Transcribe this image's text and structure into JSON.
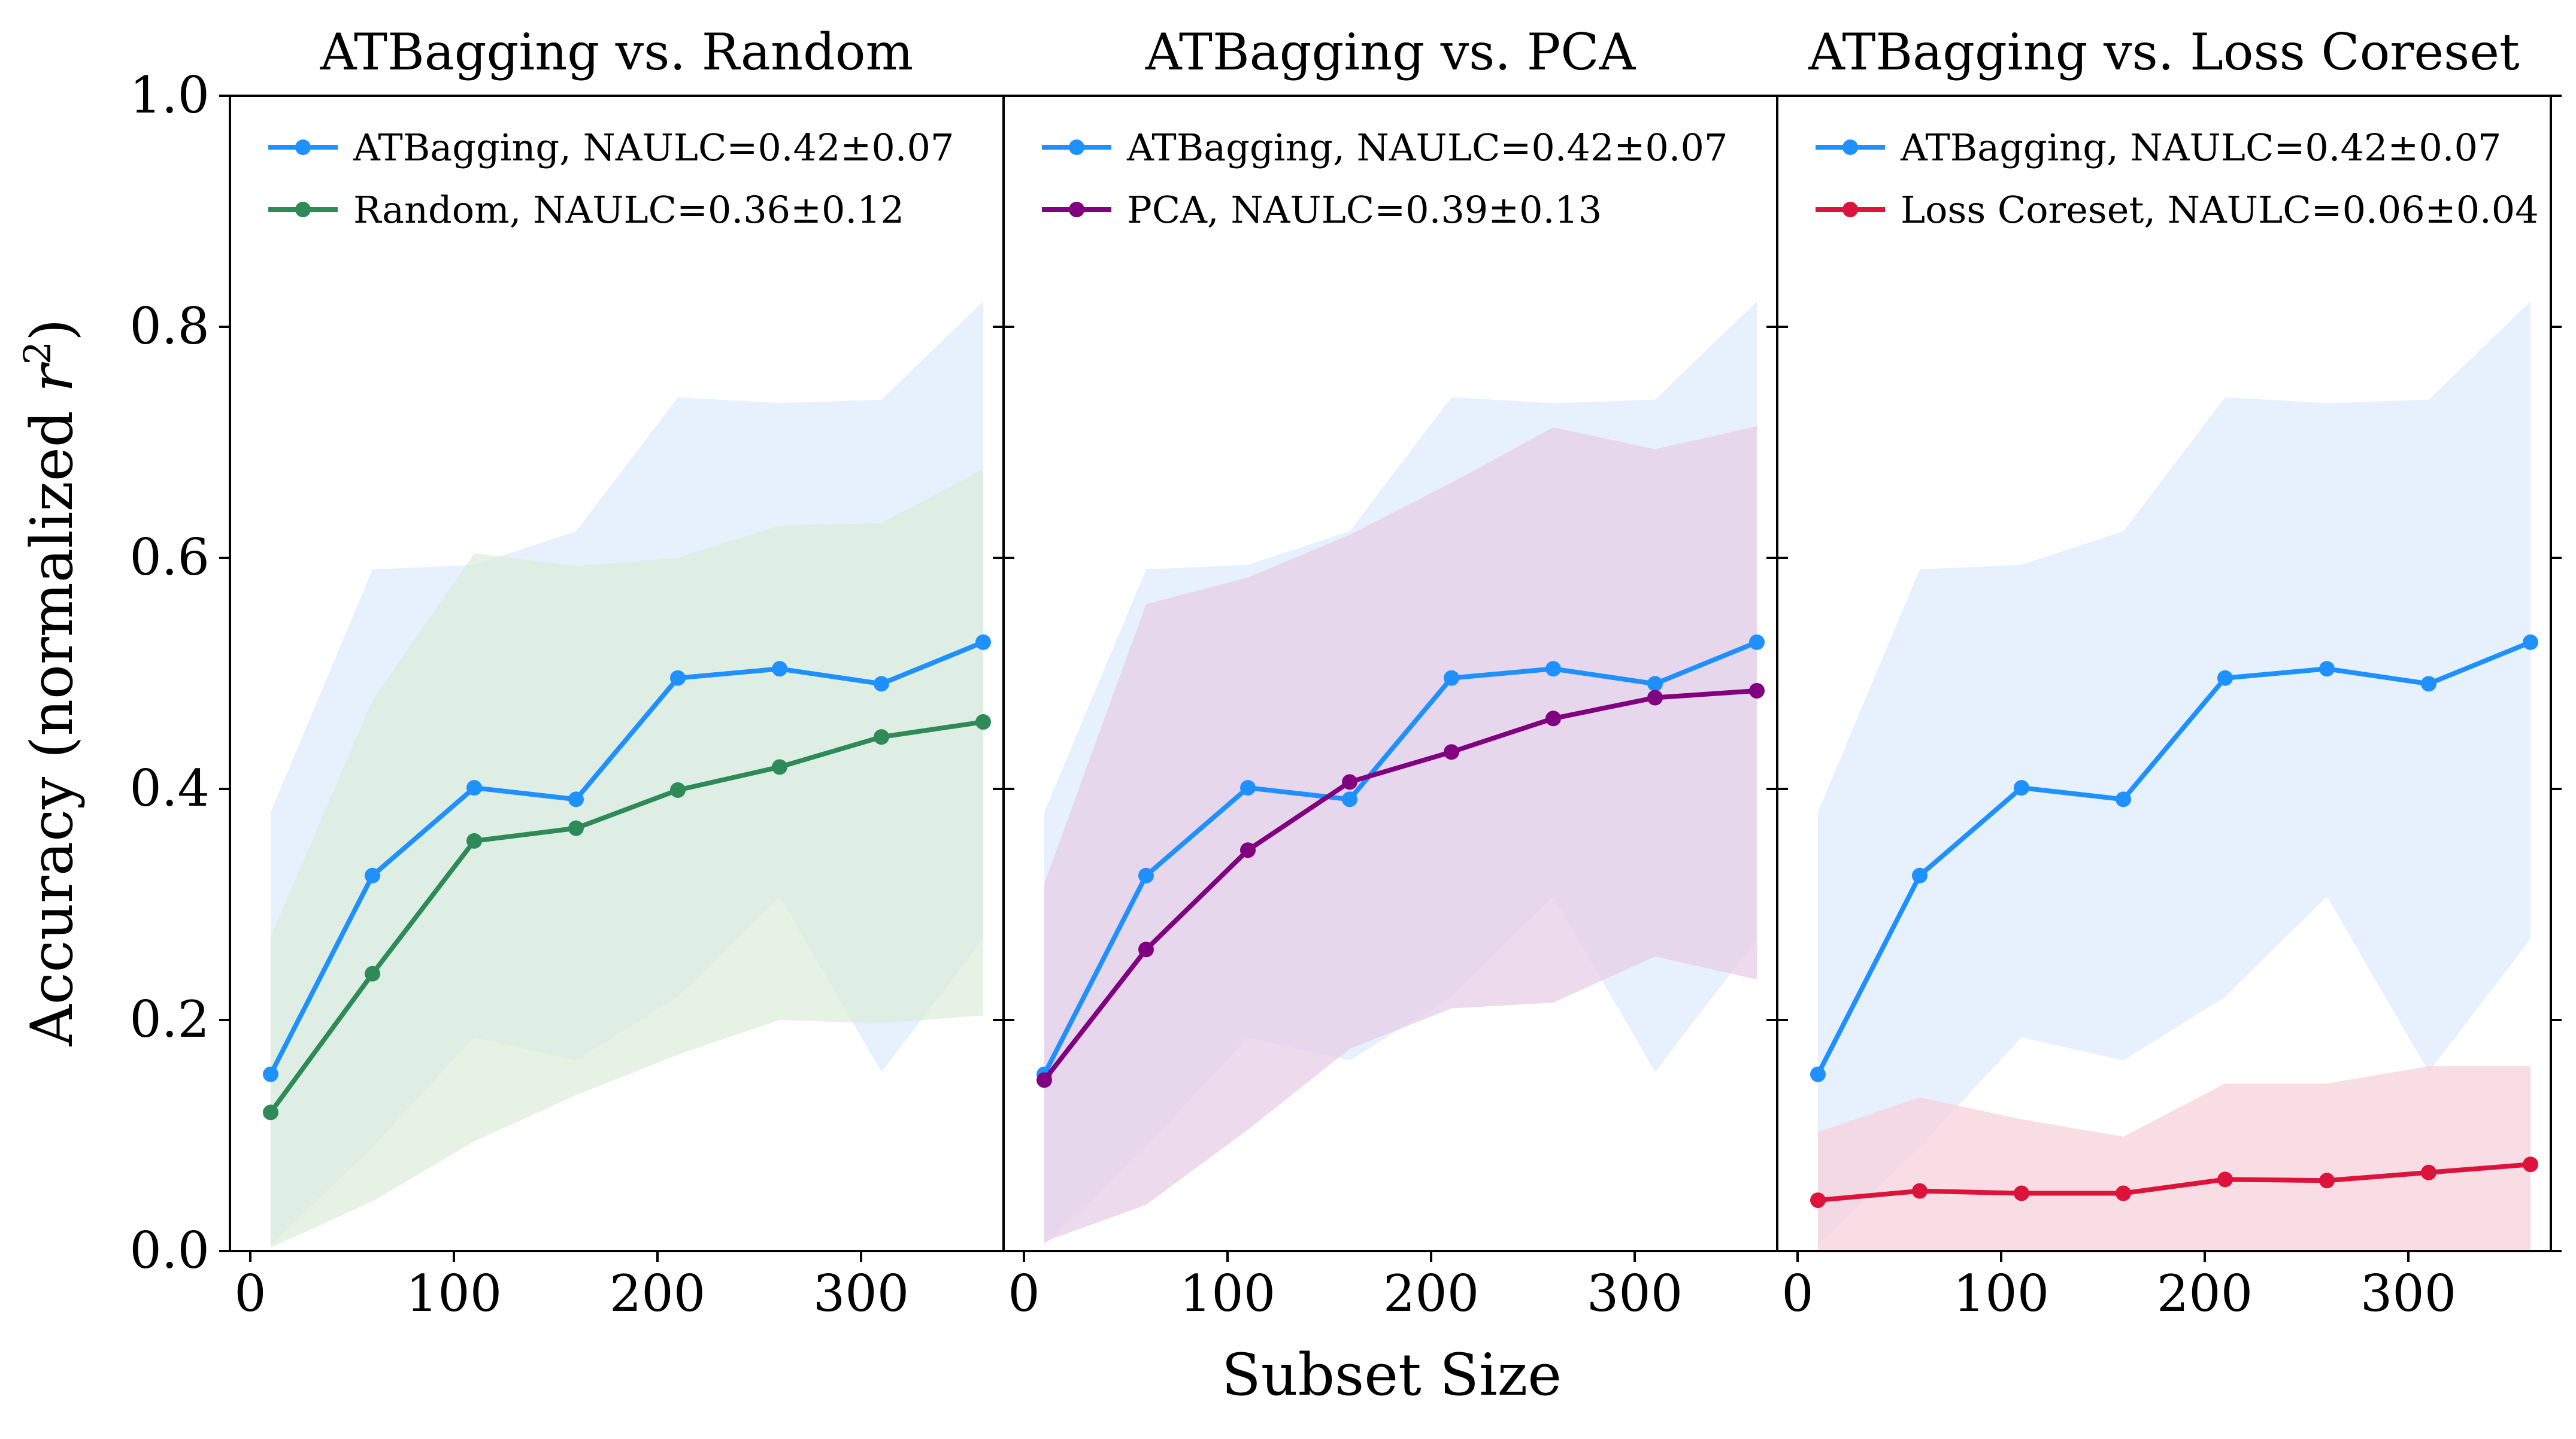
{
  "shared": {
    "xlabel": "Subset Size",
    "ylabel": "Accuracy (normalized r²)",
    "ylabel_main": "Accuracy (normalized ",
    "ylabel_var": "r",
    "ylabel_sup": "2",
    "ylabel_close": ")",
    "xlim": [
      -10,
      370
    ],
    "ylim": [
      0.0,
      1.0
    ],
    "xticks": [
      0,
      100,
      200,
      300
    ],
    "yticks": [
      0.0,
      0.2,
      0.4,
      0.6,
      0.8,
      1.0
    ],
    "ytick_labels": [
      "0.0",
      "0.2",
      "0.4",
      "0.6",
      "0.8",
      "1.0"
    ],
    "legend_position": "upper-left"
  },
  "chart_data": [
    {
      "type": "line",
      "title": "ATBagging vs. Random",
      "xlabel": "Subset Size",
      "ylabel": "Accuracy (normalized r²)",
      "xlim": [
        -10,
        370
      ],
      "ylim": [
        0.0,
        1.0
      ],
      "x": [
        10,
        60,
        110,
        160,
        210,
        260,
        310,
        360
      ],
      "series": [
        {
          "name": "ATBagging, NAULC=0.42±0.07",
          "color": "#1E90FF",
          "band_color": "#D6E8FB",
          "values": [
            0.153,
            0.325,
            0.401,
            0.391,
            0.496,
            0.504,
            0.491,
            0.527
          ],
          "lower": [
            0.005,
            0.09,
            0.185,
            0.165,
            0.22,
            0.307,
            0.155,
            0.27
          ],
          "upper": [
            0.38,
            0.59,
            0.594,
            0.623,
            0.739,
            0.734,
            0.737,
            0.822
          ]
        },
        {
          "name": "Random, NAULC=0.36±0.12",
          "color": "#2E8B57",
          "band_color": "#DCECD8",
          "values": [
            0.12,
            0.24,
            0.355,
            0.366,
            0.399,
            0.419,
            0.445,
            0.458
          ],
          "lower": [
            0.003,
            0.043,
            0.095,
            0.135,
            0.17,
            0.2,
            0.197,
            0.204
          ],
          "upper": [
            0.272,
            0.477,
            0.604,
            0.593,
            0.6,
            0.628,
            0.63,
            0.677
          ]
        }
      ]
    },
    {
      "type": "line",
      "title": "ATBagging vs. PCA",
      "xlabel": "Subset Size",
      "ylabel": "Accuracy (normalized r²)",
      "xlim": [
        -10,
        370
      ],
      "ylim": [
        0.0,
        1.0
      ],
      "x": [
        10,
        60,
        110,
        160,
        210,
        260,
        310,
        360
      ],
      "series": [
        {
          "name": "ATBagging, NAULC=0.42±0.07",
          "color": "#1E90FF",
          "band_color": "#D6E8FB",
          "values": [
            0.153,
            0.325,
            0.401,
            0.391,
            0.496,
            0.504,
            0.491,
            0.527
          ],
          "lower": [
            0.005,
            0.09,
            0.185,
            0.165,
            0.22,
            0.307,
            0.155,
            0.27
          ],
          "upper": [
            0.38,
            0.59,
            0.594,
            0.623,
            0.739,
            0.734,
            0.737,
            0.822
          ]
        },
        {
          "name": "PCA, NAULC=0.39±0.13",
          "color": "#800080",
          "band_color": "#E6CCE6",
          "values": [
            0.148,
            0.261,
            0.347,
            0.406,
            0.432,
            0.461,
            0.479,
            0.485
          ],
          "lower": [
            0.008,
            0.04,
            0.105,
            0.175,
            0.21,
            0.215,
            0.255,
            0.235
          ],
          "upper": [
            0.318,
            0.56,
            0.583,
            0.62,
            0.665,
            0.713,
            0.694,
            0.714
          ]
        }
      ]
    },
    {
      "type": "line",
      "title": "ATBagging vs. Loss Coreset",
      "xlabel": "Subset Size",
      "ylabel": "Accuracy (normalized r²)",
      "xlim": [
        -10,
        370
      ],
      "ylim": [
        0.0,
        1.0
      ],
      "x": [
        10,
        60,
        110,
        160,
        210,
        260,
        310,
        360
      ],
      "series": [
        {
          "name": "ATBagging, NAULC=0.42±0.07",
          "color": "#1E90FF",
          "band_color": "#D6E8FB",
          "values": [
            0.153,
            0.325,
            0.401,
            0.391,
            0.496,
            0.504,
            0.491,
            0.527
          ],
          "lower": [
            0.005,
            0.09,
            0.185,
            0.165,
            0.22,
            0.307,
            0.155,
            0.27
          ],
          "upper": [
            0.38,
            0.59,
            0.594,
            0.623,
            0.739,
            0.734,
            0.737,
            0.822
          ]
        },
        {
          "name": "Loss Coreset, NAULC=0.06±0.04",
          "color": "#DC143C",
          "band_color": "#F7CFD8",
          "values": [
            0.044,
            0.052,
            0.05,
            0.05,
            0.062,
            0.061,
            0.068,
            0.075
          ],
          "lower": [
            0.0,
            0.0,
            0.0,
            0.0,
            0.0,
            0.0,
            0.0,
            0.0
          ],
          "upper": [
            0.103,
            0.133,
            0.114,
            0.099,
            0.145,
            0.145,
            0.16,
            0.16
          ]
        }
      ]
    }
  ]
}
